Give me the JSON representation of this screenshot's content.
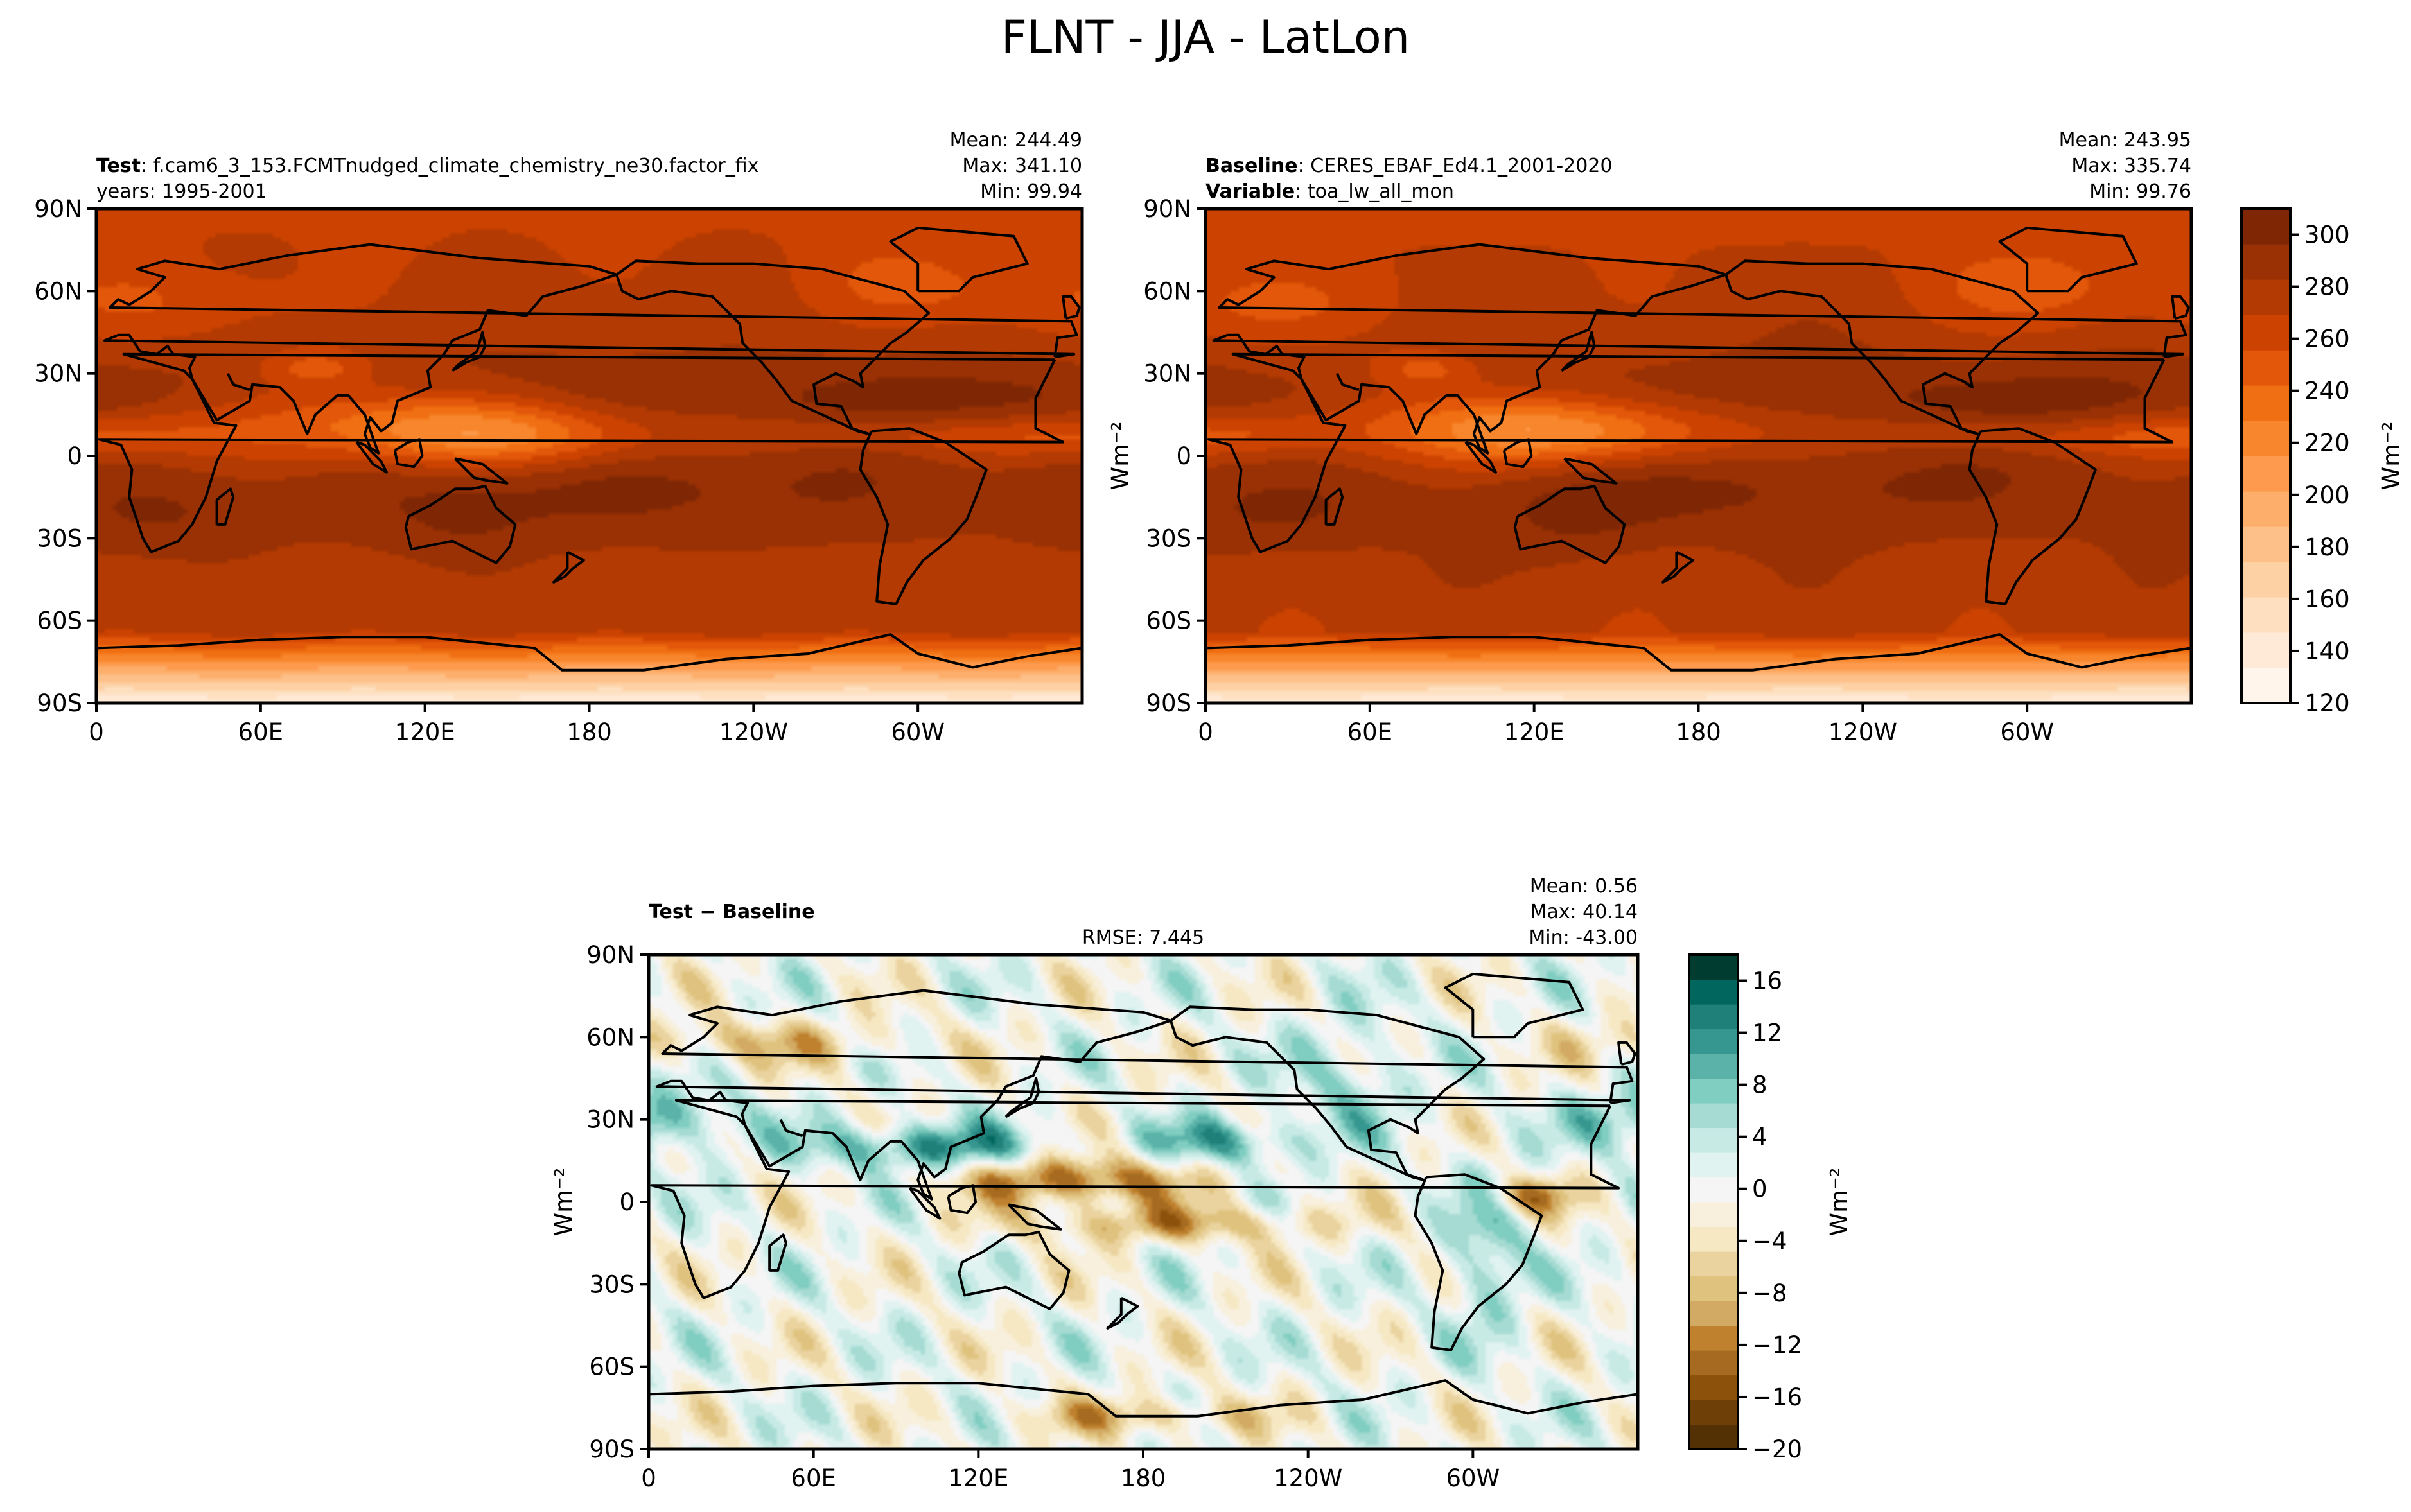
{
  "figure": {
    "title": "FLNT - JJA - LatLon"
  },
  "colors": {
    "seq": [
      "#fff5eb",
      "#feead6",
      "#fee0c1",
      "#fdd1a4",
      "#fdc089",
      "#fdae6b",
      "#fd9a4e",
      "#f8862c",
      "#f06f12",
      "#e25709",
      "#cc4301",
      "#b33a02",
      "#993104",
      "#7f2704"
    ],
    "div": [
      "#543005",
      "#6f3f08",
      "#8c510a",
      "#a66b20",
      "#bf812d",
      "#d2aa63",
      "#dfc27d",
      "#ead39f",
      "#f6e8c3",
      "#f8f0dc",
      "#f5f5f5",
      "#e0f3f1",
      "#c7eae5",
      "#a5dbd3",
      "#80cdc1",
      "#5ab2a8",
      "#35978f",
      "#1e8078",
      "#01665e",
      "#003c30"
    ],
    "coast": "#000000"
  },
  "chart_data": [
    {
      "id": "test",
      "type": "heatmap",
      "header": {
        "left_line1_bold": "Test",
        "left_line1_rest": ": f.cam6_3_153.FCMTnudged_climate_chemistry_ne30.factor_fix",
        "left_line2": "years: 1995-2001",
        "center": "",
        "stats": [
          "Mean: 244.49",
          "Max: 341.10",
          "Min: 99.94"
        ]
      },
      "x_ticks": [
        "0",
        "60E",
        "120E",
        "180",
        "120W",
        "60W"
      ],
      "x_tick_values": [
        0,
        60,
        120,
        180,
        240,
        300
      ],
      "y_ticks": [
        "90N",
        "60N",
        "30N",
        "0",
        "30S",
        "60S",
        "90S"
      ],
      "y_tick_values": [
        90,
        60,
        30,
        0,
        -30,
        -60,
        -90
      ],
      "xlim": [
        0,
        360
      ],
      "ylim": [
        -90,
        90
      ],
      "ylabel": "",
      "palette": "seq",
      "levels": [
        120,
        310
      ],
      "stats": {
        "mean": 244.49,
        "max": 341.1,
        "min": 99.94
      }
    },
    {
      "id": "baseline",
      "type": "heatmap",
      "header": {
        "left_line1_bold": "Baseline",
        "left_line1_rest": ": CERES_EBAF_Ed4.1_2001-2020",
        "left_line2_bold": "Variable",
        "left_line2_rest": ": toa_lw_all_mon",
        "center": "",
        "stats": [
          "Mean: 243.95",
          "Max: 335.74",
          "Min: 99.76"
        ]
      },
      "x_ticks": [
        "0",
        "60E",
        "120E",
        "180",
        "120W",
        "60W"
      ],
      "x_tick_values": [
        0,
        60,
        120,
        180,
        240,
        300
      ],
      "y_ticks": [
        "90N",
        "60N",
        "30N",
        "0",
        "30S",
        "60S",
        "90S"
      ],
      "y_tick_values": [
        90,
        60,
        30,
        0,
        -30,
        -60,
        -90
      ],
      "xlim": [
        0,
        360
      ],
      "ylim": [
        -90,
        90
      ],
      "ylabel": "Wm⁻²",
      "palette": "seq",
      "levels": [
        120,
        310
      ],
      "colorbar": {
        "ticks": [
          "120",
          "140",
          "160",
          "180",
          "200",
          "220",
          "240",
          "260",
          "280",
          "300"
        ],
        "tick_values": [
          120,
          140,
          160,
          180,
          200,
          220,
          240,
          260,
          280,
          300
        ],
        "range": [
          120,
          310
        ],
        "label": "Wm⁻²"
      },
      "stats": {
        "mean": 243.95,
        "max": 335.74,
        "min": 99.76
      }
    },
    {
      "id": "diff",
      "type": "heatmap",
      "header": {
        "left_line1_bold": "Test − Baseline",
        "left_line1_rest": "",
        "left_line2": "",
        "center": "RMSE: 7.445",
        "stats": [
          "Mean:  0.56",
          "Max: 40.14",
          "Min: -43.00"
        ]
      },
      "x_ticks": [
        "0",
        "60E",
        "120E",
        "180",
        "120W",
        "60W"
      ],
      "x_tick_values": [
        0,
        60,
        120,
        180,
        240,
        300
      ],
      "y_ticks": [
        "90N",
        "60N",
        "30N",
        "0",
        "30S",
        "60S",
        "90S"
      ],
      "y_tick_values": [
        90,
        60,
        30,
        0,
        -30,
        -60,
        -90
      ],
      "xlim": [
        0,
        360
      ],
      "ylim": [
        -90,
        90
      ],
      "ylabel": "Wm⁻²",
      "palette": "div",
      "levels": [
        -20,
        18
      ],
      "colorbar": {
        "ticks": [
          "−20",
          "−16",
          "−12",
          "−8",
          "−4",
          "0",
          "4",
          "8",
          "12",
          "16"
        ],
        "tick_values": [
          -20,
          -16,
          -12,
          -8,
          -4,
          0,
          4,
          8,
          12,
          16
        ],
        "range": [
          -20,
          18
        ],
        "label": "Wm⁻²"
      },
      "stats": {
        "mean": 0.56,
        "max": 40.14,
        "min": -43.0,
        "rmse": 7.445
      }
    }
  ]
}
